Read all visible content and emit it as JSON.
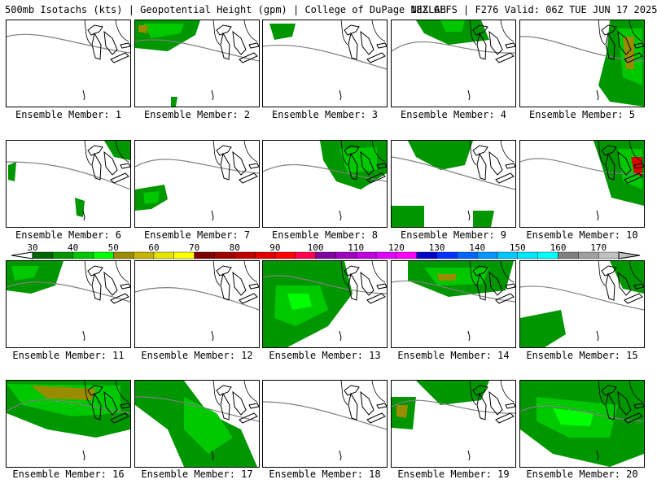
{
  "header": {
    "left": "500mb Isotachs (kts) | Geopotential Height (gpm) | College of DuPage NEXLAB",
    "right": "18Z GEFS | F276 Valid: 06Z TUE JUN 17 2025"
  },
  "legend": {
    "labels": [
      "30",
      "40",
      "50",
      "60",
      "70",
      "80",
      "90",
      "100",
      "110",
      "120",
      "130",
      "140",
      "150",
      "160",
      "170"
    ],
    "colors": [
      "#006400",
      "#009600",
      "#00c800",
      "#00ff00",
      "#9a8c00",
      "#c8b400",
      "#e6e600",
      "#ffff00",
      "#800000",
      "#a00000",
      "#c00000",
      "#e00000",
      "#ff0000",
      "#ff0050",
      "#8000a0",
      "#a000c0",
      "#c000e0",
      "#e000ff",
      "#ff00ff",
      "#0000c8",
      "#0032ff",
      "#0064ff",
      "#0096ff",
      "#00c8ff",
      "#00e6ff",
      "#00ffff",
      "#808080",
      "#a0a0a0",
      "#c0c0c0"
    ]
  },
  "panels": [
    {
      "label": "Ensemble Member: 1"
    },
    {
      "label": "Ensemble Member: 2"
    },
    {
      "label": "Ensemble Member: 3"
    },
    {
      "label": "Ensemble Member: 4"
    },
    {
      "label": "Ensemble Member: 5"
    },
    {
      "label": "Ensemble Member: 6"
    },
    {
      "label": "Ensemble Member: 7"
    },
    {
      "label": "Ensemble Member: 8"
    },
    {
      "label": "Ensemble Member: 9"
    },
    {
      "label": "Ensemble Member: 10"
    },
    {
      "label": "Ensemble Member: 11"
    },
    {
      "label": "Ensemble Member: 12"
    },
    {
      "label": "Ensemble Member: 13"
    },
    {
      "label": "Ensemble Member: 14"
    },
    {
      "label": "Ensemble Member: 15"
    },
    {
      "label": "Ensemble Member: 16"
    },
    {
      "label": "Ensemble Member: 17"
    },
    {
      "label": "Ensemble Member: 18"
    },
    {
      "label": "Ensemble Member: 19"
    },
    {
      "label": "Ensemble Member: 20"
    }
  ]
}
